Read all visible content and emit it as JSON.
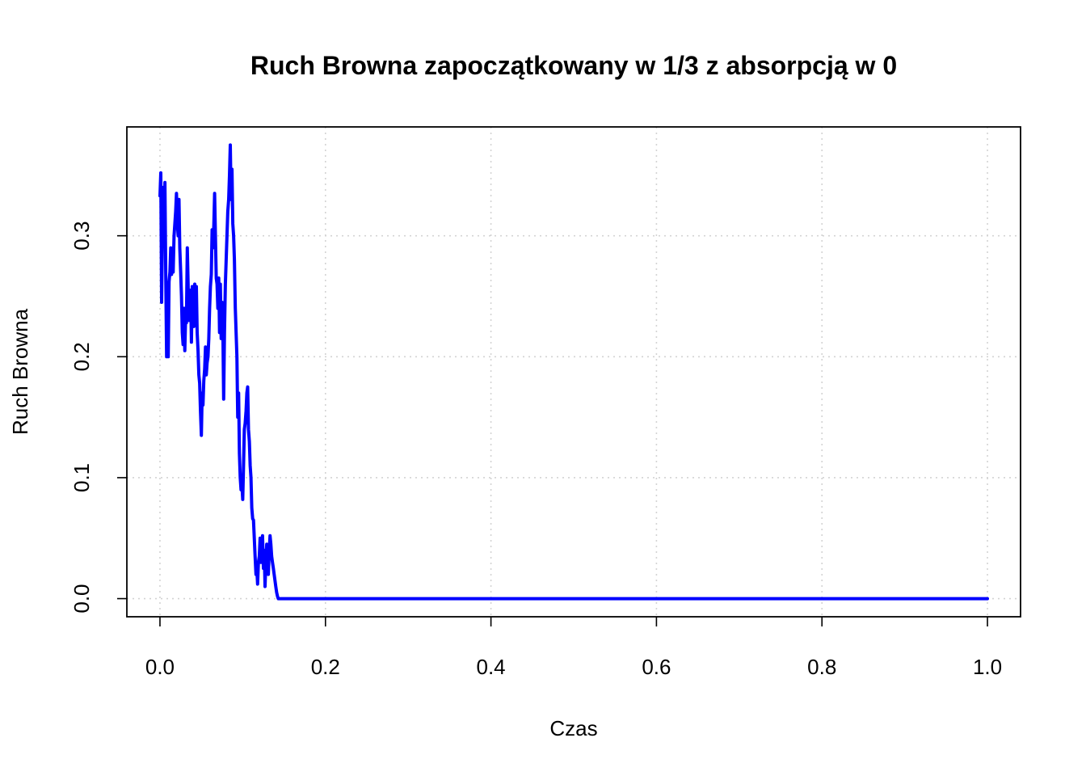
{
  "chart_data": {
    "type": "line",
    "title": "Ruch Browna zapoczątkowany w 1/3 z absorpcją w 0",
    "xlabel": "Czas",
    "ylabel": "Ruch Browna",
    "xlim": [
      -0.04,
      1.04
    ],
    "ylim": [
      -0.015,
      0.39
    ],
    "x_ticks": [
      0.0,
      0.2,
      0.4,
      0.6,
      0.8,
      1.0
    ],
    "x_tick_labels": [
      "0.0",
      "0.2",
      "0.4",
      "0.6",
      "0.8",
      "1.0"
    ],
    "y_ticks": [
      0.0,
      0.1,
      0.2,
      0.3
    ],
    "y_tick_labels": [
      "0.0",
      "0.1",
      "0.2",
      "0.3"
    ],
    "grid": true,
    "color": "#0000ff",
    "series": [
      {
        "x": [
          0.0,
          0.001,
          0.002,
          0.003,
          0.004,
          0.005,
          0.006,
          0.007,
          0.008,
          0.009,
          0.01,
          0.011,
          0.012,
          0.013,
          0.014,
          0.015,
          0.016,
          0.017,
          0.018,
          0.019,
          0.02,
          0.021,
          0.022,
          0.023,
          0.024,
          0.025,
          0.026,
          0.027,
          0.028,
          0.029,
          0.03,
          0.031,
          0.032,
          0.033,
          0.034,
          0.035,
          0.036,
          0.037,
          0.038,
          0.039,
          0.04,
          0.041,
          0.042,
          0.043,
          0.044,
          0.045,
          0.046,
          0.047,
          0.048,
          0.049,
          0.05,
          0.051,
          0.052,
          0.053,
          0.054,
          0.055,
          0.056,
          0.057,
          0.058,
          0.059,
          0.06,
          0.061,
          0.062,
          0.063,
          0.064,
          0.065,
          0.066,
          0.067,
          0.068,
          0.069,
          0.07,
          0.071,
          0.072,
          0.073,
          0.074,
          0.075,
          0.076,
          0.077,
          0.078,
          0.079,
          0.08,
          0.081,
          0.082,
          0.083,
          0.084,
          0.085,
          0.086,
          0.087,
          0.088,
          0.089,
          0.09,
          0.091,
          0.092,
          0.093,
          0.094,
          0.095,
          0.096,
          0.097,
          0.098,
          0.099,
          0.1,
          0.101,
          0.102,
          0.103,
          0.104,
          0.105,
          0.106,
          0.107,
          0.108,
          0.109,
          0.11,
          0.111,
          0.112,
          0.113,
          0.114,
          0.115,
          0.116,
          0.117,
          0.118,
          0.119,
          0.12,
          0.121,
          0.122,
          0.123,
          0.124,
          0.125,
          0.126,
          0.127,
          0.128,
          0.129,
          0.13,
          0.131,
          0.132,
          0.133,
          0.134,
          0.135,
          0.136,
          0.137,
          0.138,
          0.139,
          0.14,
          0.141,
          0.142,
          0.143,
          0.144,
          1.0
        ],
        "y": [
          0.333,
          0.352,
          0.245,
          0.3,
          0.34,
          0.31,
          0.344,
          0.27,
          0.2,
          0.24,
          0.2,
          0.262,
          0.27,
          0.29,
          0.268,
          0.285,
          0.27,
          0.3,
          0.31,
          0.32,
          0.335,
          0.31,
          0.3,
          0.33,
          0.29,
          0.27,
          0.25,
          0.22,
          0.21,
          0.24,
          0.205,
          0.232,
          0.228,
          0.29,
          0.26,
          0.23,
          0.24,
          0.255,
          0.212,
          0.258,
          0.245,
          0.225,
          0.26,
          0.235,
          0.258,
          0.22,
          0.205,
          0.185,
          0.178,
          0.155,
          0.135,
          0.17,
          0.16,
          0.18,
          0.19,
          0.208,
          0.185,
          0.195,
          0.2,
          0.215,
          0.24,
          0.258,
          0.268,
          0.305,
          0.29,
          0.305,
          0.335,
          0.3,
          0.265,
          0.26,
          0.24,
          0.265,
          0.22,
          0.26,
          0.215,
          0.245,
          0.225,
          0.165,
          0.22,
          0.26,
          0.28,
          0.3,
          0.32,
          0.33,
          0.35,
          0.375,
          0.33,
          0.355,
          0.31,
          0.3,
          0.28,
          0.24,
          0.22,
          0.2,
          0.15,
          0.17,
          0.12,
          0.1,
          0.09,
          0.095,
          0.082,
          0.11,
          0.14,
          0.145,
          0.155,
          0.17,
          0.175,
          0.14,
          0.13,
          0.11,
          0.1,
          0.075,
          0.066,
          0.065,
          0.05,
          0.035,
          0.02,
          0.025,
          0.012,
          0.03,
          0.035,
          0.05,
          0.03,
          0.04,
          0.052,
          0.025,
          0.04,
          0.01,
          0.03,
          0.045,
          0.035,
          0.02,
          0.038,
          0.052,
          0.045,
          0.035,
          0.03,
          0.025,
          0.02,
          0.015,
          0.01,
          0.005,
          0.002,
          0.0,
          0.0,
          0.0
        ]
      }
    ]
  }
}
